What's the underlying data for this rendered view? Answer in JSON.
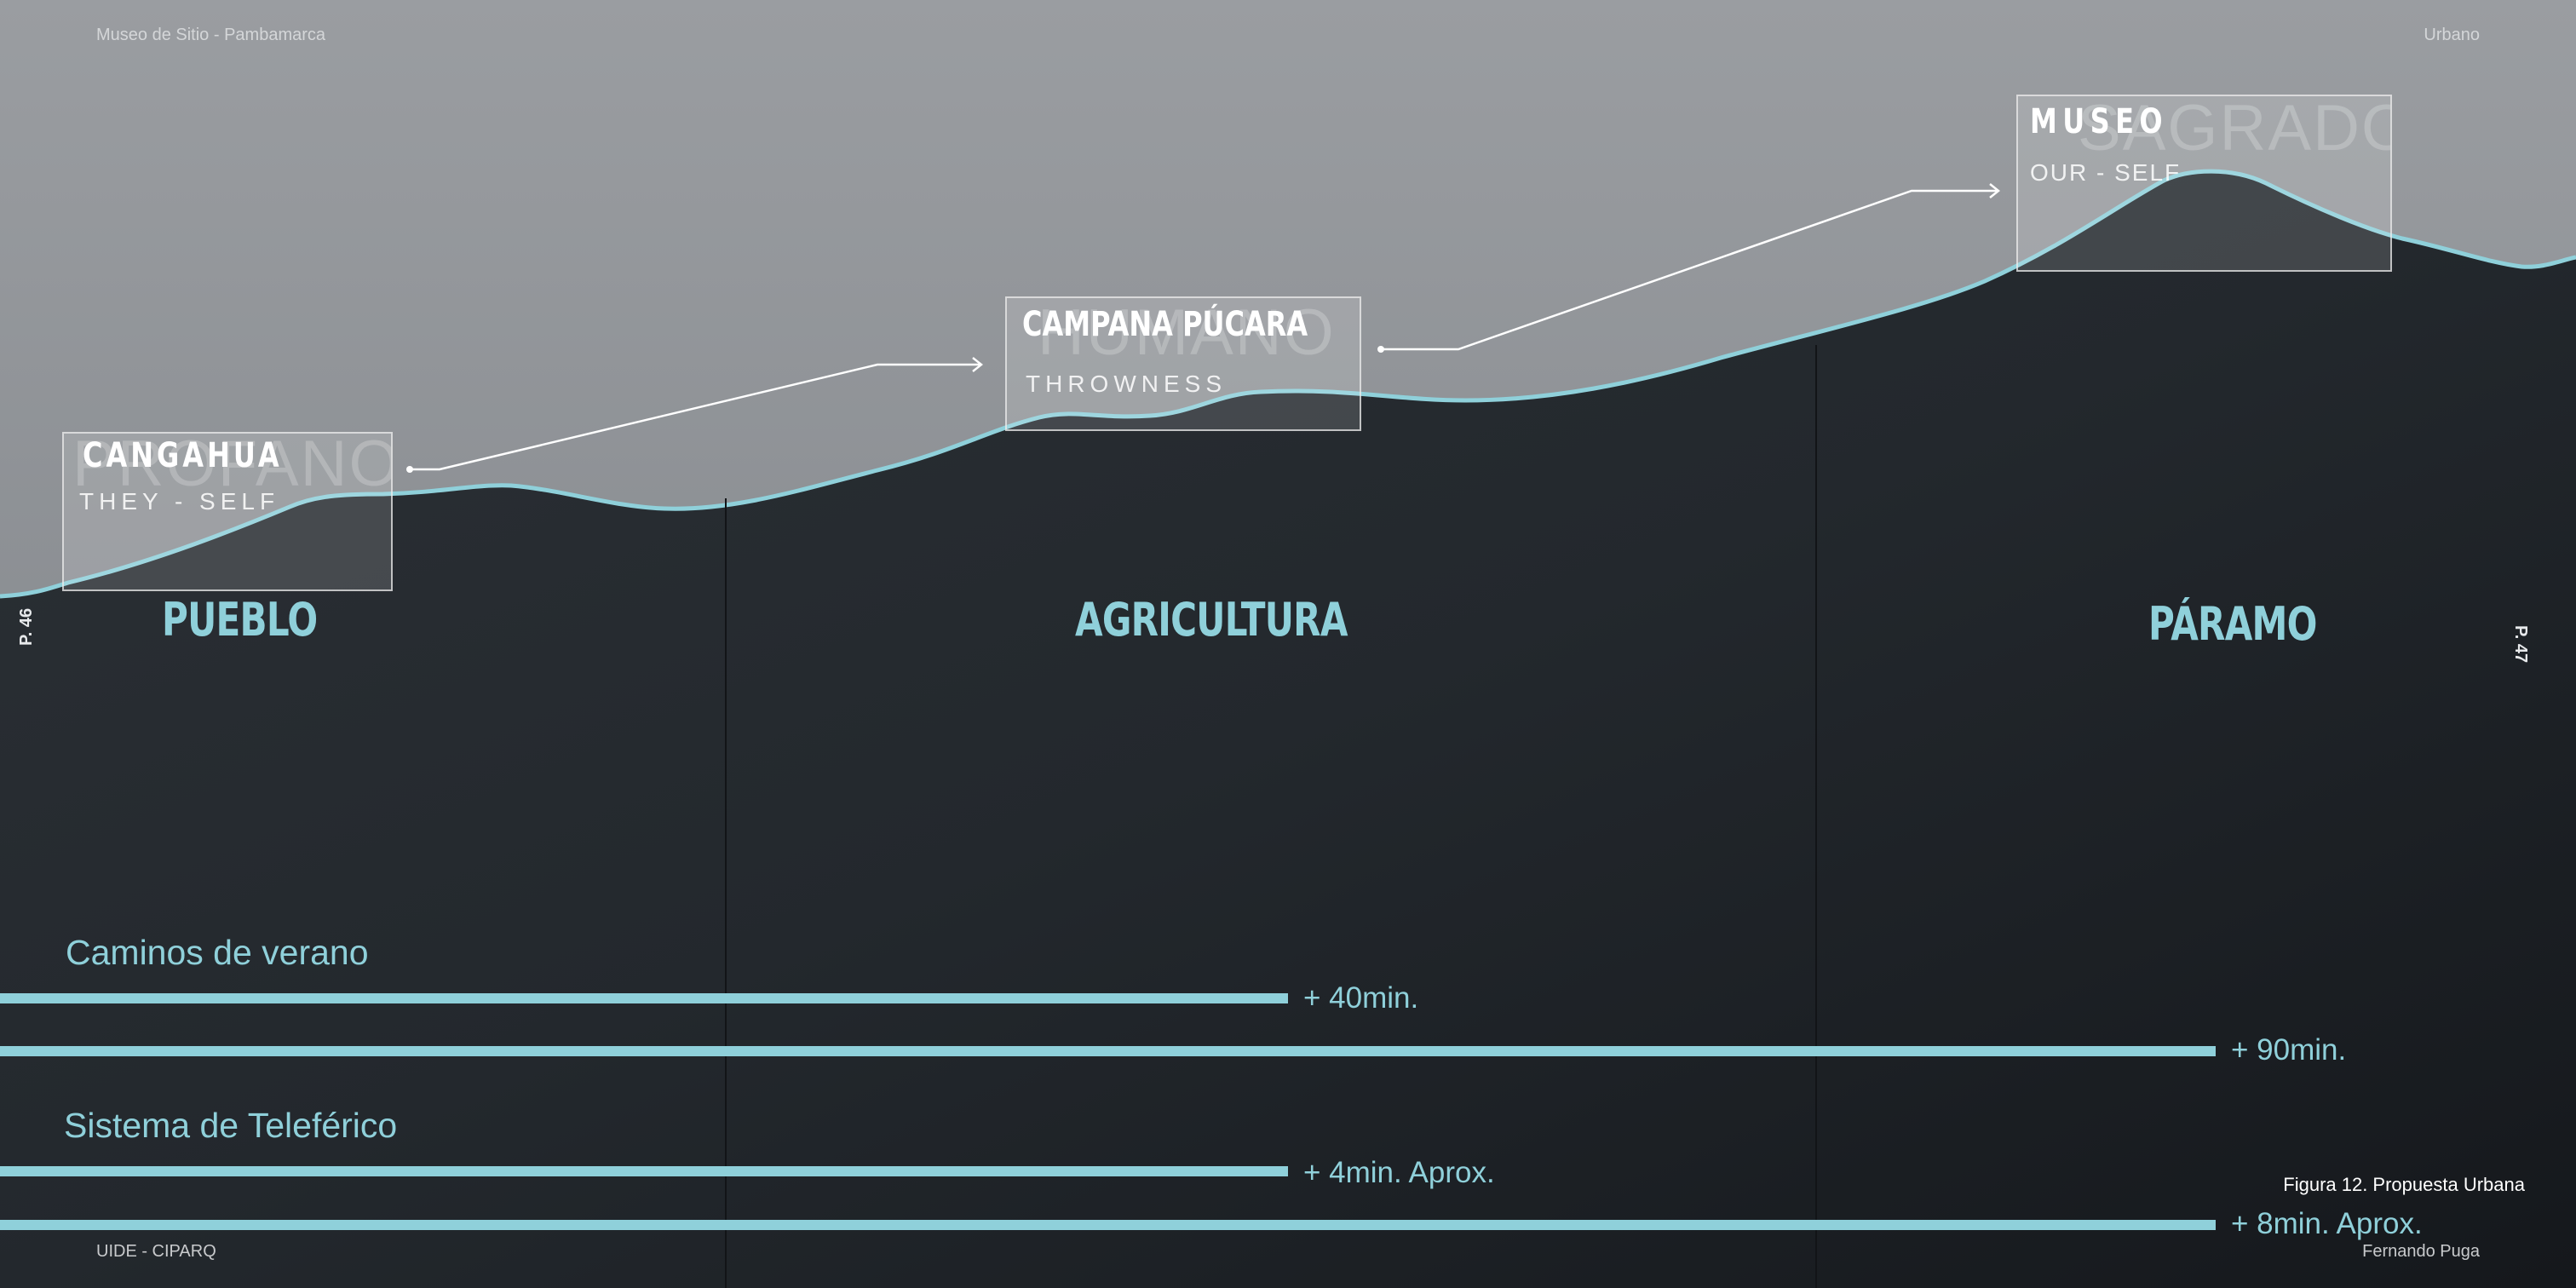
{
  "header": {
    "left": "Museo de Sitio - Pambamarca",
    "right": "Urbano"
  },
  "pages": {
    "left": "P. 46",
    "right": "P. 47"
  },
  "zones": [
    "PUEBLO",
    "AGRICULTURA",
    "PÁRAMO"
  ],
  "boxes": [
    {
      "title": "CANGAHUA",
      "subtitle": "THEY - SELF",
      "ghost": "PROFANO"
    },
    {
      "title": "CAMPANA PÚCARA",
      "subtitle": "THROWNESS",
      "ghost": "HUMANO"
    },
    {
      "title": "MUSEO",
      "subtitle": "OUR - SELF",
      "ghost": "SAGRADO"
    }
  ],
  "routes": [
    {
      "title": "Caminos de verano",
      "bars": [
        {
          "label": "+ 40min.",
          "fraction": 0.5
        },
        {
          "label": "+ 90min.",
          "fraction": 0.86
        }
      ]
    },
    {
      "title": "Sistema de Teleférico",
      "bars": [
        {
          "label": "+ 4min. Aprox.",
          "fraction": 0.5
        },
        {
          "label": "+ 8min. Aprox.",
          "fraction": 0.86
        }
      ]
    }
  ],
  "caption": "Figura 12. Propuesta Urbana",
  "footer": {
    "left": "UIDE - CIPARQ",
    "right": "Fernando Puga"
  },
  "colors": {
    "accent": "#8fd0da",
    "sky": "#8c8f94",
    "ground": "#1c2025"
  }
}
